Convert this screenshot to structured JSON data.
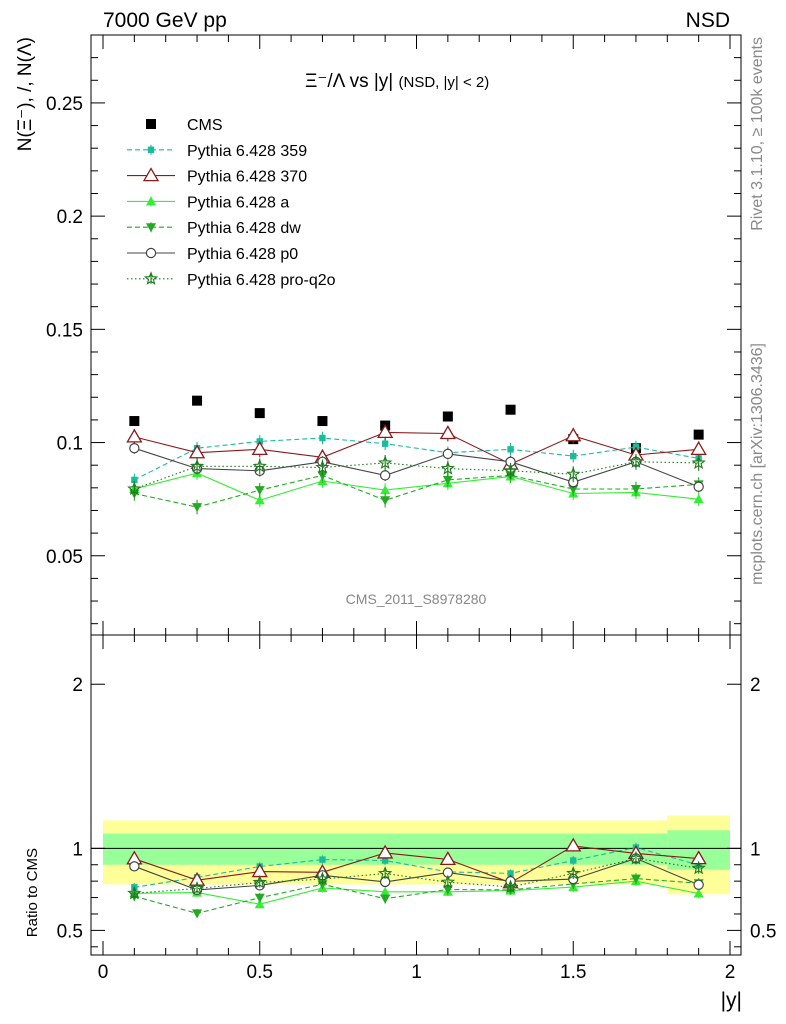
{
  "header": {
    "left": "7000 GeV pp",
    "right": "NSD"
  },
  "side_labels": {
    "rivet": "Rivet 3.1.10, ≥ 100k events",
    "mcplots": "mcplots.cern.ch [arXiv:1306.3436]"
  },
  "watermark": "CMS_2011_S8978280",
  "chart_data": {
    "type": "scatter",
    "title_main": "Ξ⁻/Λ vs |y|",
    "title_sub": "(NSD, |y| < 2)",
    "ylabel": "N(Ξ⁻), /, N(Λ)",
    "xlabel": "|y|",
    "xlim": [
      0,
      2
    ],
    "ylim": [
      0.015,
      0.28
    ],
    "x_ticks": [
      "0",
      "0.5",
      "1",
      "1.5",
      "2"
    ],
    "y_ticks": [
      "0.05",
      "0.1",
      "0.15",
      "0.2",
      "0.25"
    ],
    "x": [
      0.1,
      0.3,
      0.5,
      0.7,
      0.9,
      1.1,
      1.3,
      1.5,
      1.7,
      1.9
    ],
    "series": [
      {
        "name": "CMS",
        "color": "#000000",
        "values": [
          0.1095,
          0.1185,
          0.113,
          0.1095,
          0.1075,
          0.1115,
          0.1145,
          0.1015,
          0.0975,
          0.1035
        ]
      },
      {
        "name": "Pythia 6.428 359",
        "color": "#1abc9c",
        "values": [
          0.0835,
          0.0975,
          0.1005,
          0.102,
          0.0995,
          0.0955,
          0.097,
          0.094,
          0.098,
          0.093
        ]
      },
      {
        "name": "Pythia 6.428 370",
        "color": "#8b1a1a",
        "values": [
          0.1025,
          0.0955,
          0.097,
          0.0935,
          0.1045,
          0.104,
          0.0905,
          0.103,
          0.0945,
          0.097
        ]
      },
      {
        "name": "Pythia 6.428 a",
        "color": "#33ee33",
        "values": [
          0.0795,
          0.0865,
          0.0745,
          0.083,
          0.079,
          0.082,
          0.085,
          0.0775,
          0.078,
          0.075
        ]
      },
      {
        "name": "Pythia 6.428 dw",
        "color": "#22aa22",
        "values": [
          0.0775,
          0.0715,
          0.079,
          0.0855,
          0.0745,
          0.0835,
          0.0855,
          0.0795,
          0.0795,
          0.0815
        ]
      },
      {
        "name": "Pythia 6.428 p0",
        "color": "#444444",
        "values": [
          0.0975,
          0.0885,
          0.0875,
          0.0915,
          0.0855,
          0.095,
          0.0915,
          0.0825,
          0.0915,
          0.0805
        ]
      },
      {
        "name": "Pythia 6.428 pro-q2o",
        "color": "#1b7a1b",
        "values": [
          0.0795,
          0.0895,
          0.0895,
          0.089,
          0.091,
          0.0885,
          0.0875,
          0.086,
          0.0915,
          0.091
        ]
      }
    ],
    "ratio": {
      "ylabel": "Ratio to CMS",
      "ylim": [
        0.35,
        2.3
      ],
      "y_ticks": [
        "0.5",
        "1",
        "2"
      ],
      "band_yellow": [
        {
          "x0": 0.0,
          "x1": 1.8,
          "lo": 0.78,
          "hi": 1.17
        },
        {
          "x0": 1.8,
          "x1": 2.0,
          "lo": 0.72,
          "hi": 1.2
        }
      ],
      "band_green": [
        {
          "x0": 0.0,
          "x1": 1.8,
          "lo": 0.9,
          "hi": 1.09
        },
        {
          "x0": 1.8,
          "x1": 2.0,
          "lo": 0.87,
          "hi": 1.11
        }
      ]
    }
  }
}
